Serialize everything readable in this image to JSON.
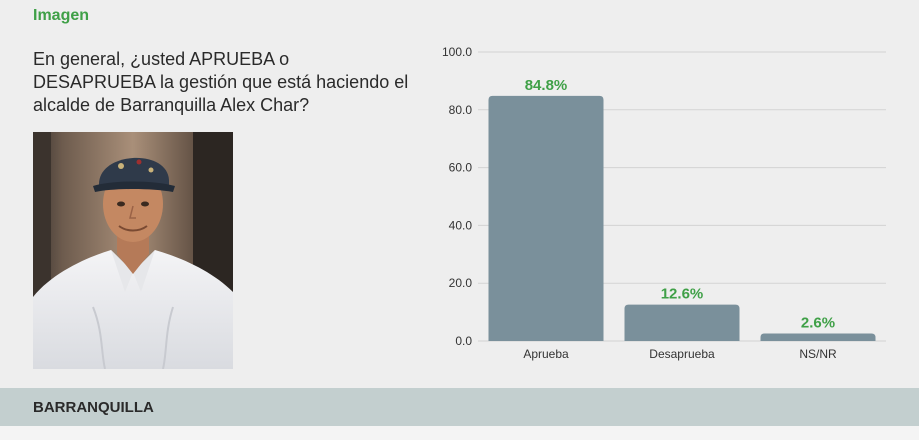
{
  "section": {
    "title": "Imagen"
  },
  "question": {
    "text": "En general, ¿usted APRUEBA o DESAPRUEBA la gestión que está haciendo el alcalde de Barranquilla Alex Char?"
  },
  "footer": {
    "label": "BARRANQUILLA"
  },
  "chart_data": {
    "type": "bar",
    "categories": [
      "Aprueba",
      "Desaprueba",
      "NS/NR"
    ],
    "values": [
      84.8,
      12.6,
      2.6
    ],
    "value_labels": [
      "84.8%",
      "12.6%",
      "2.6%"
    ],
    "yticks": [
      "0.0",
      "20.0",
      "40.0",
      "60.0",
      "80.0",
      "100.0"
    ],
    "ylim": [
      0,
      100
    ],
    "grid": true,
    "colors": {
      "bar": "#7a909b",
      "value_label": "#3fa047",
      "grid": "#d3d3d3",
      "axis_text": "#333333"
    }
  }
}
